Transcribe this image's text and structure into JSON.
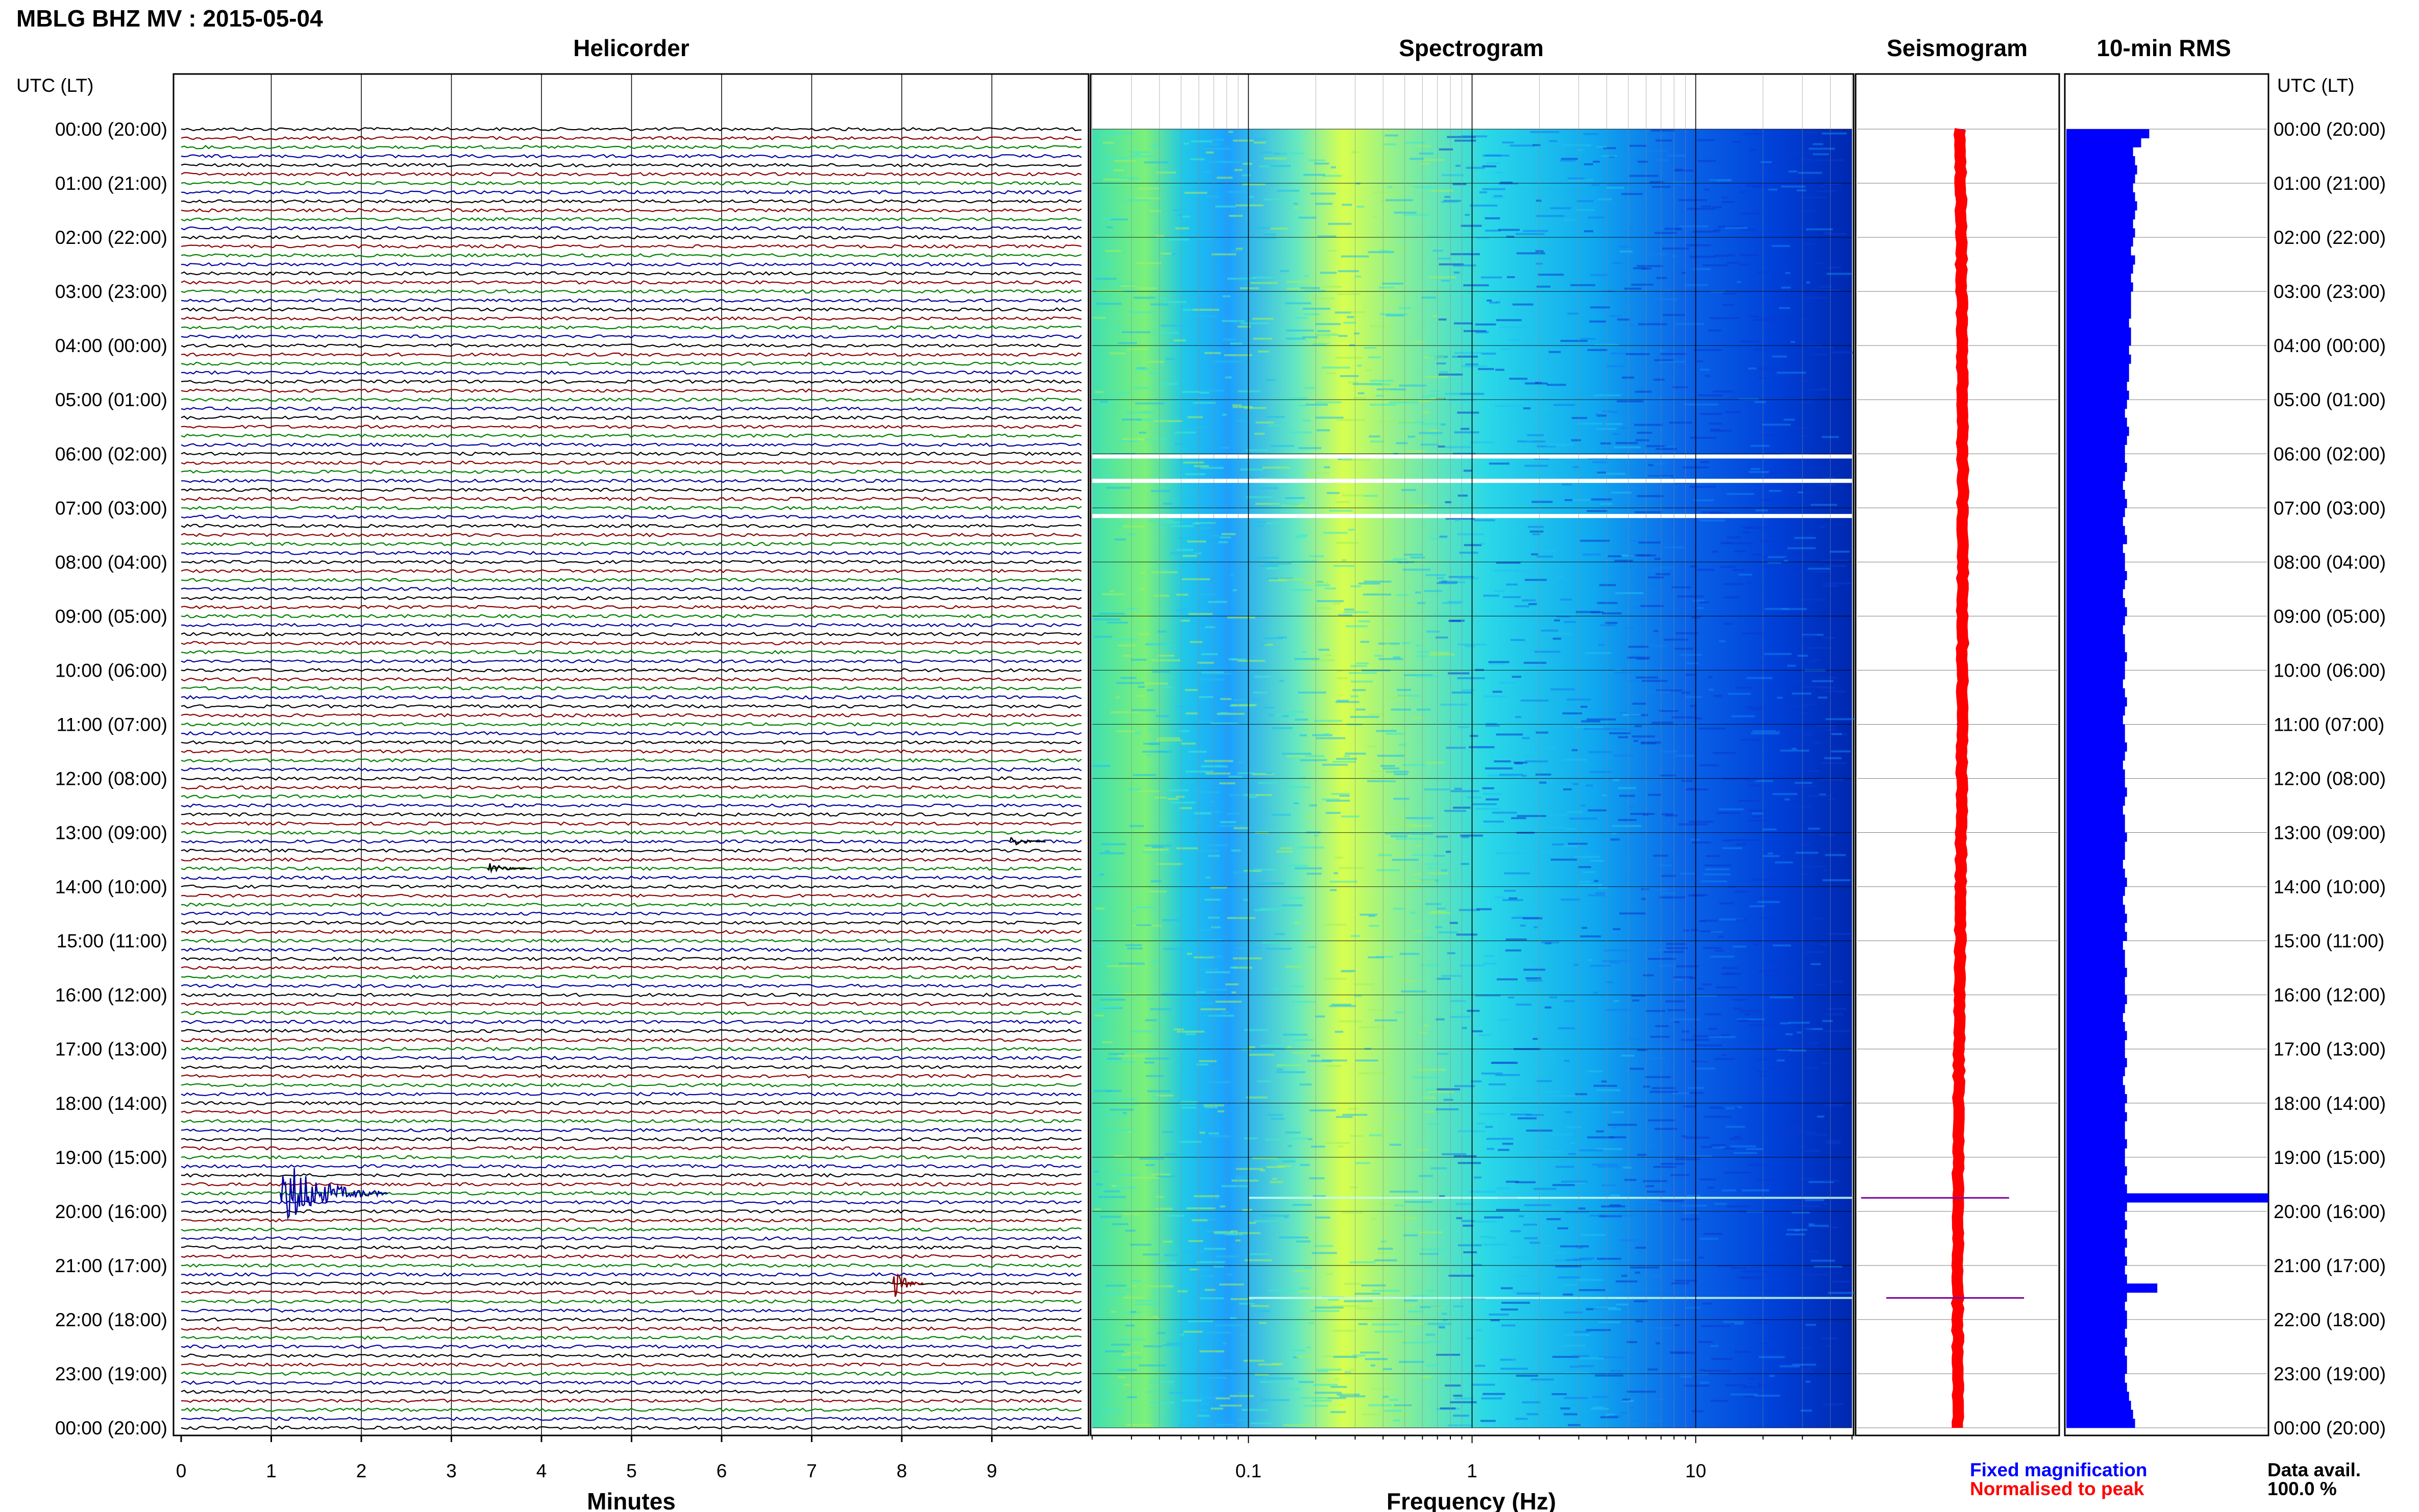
{
  "header": {
    "title": "MBLG BHZ MV : 2015-05-04",
    "utc_label": "UTC (LT)"
  },
  "panels": {
    "helicorder": "Helicorder",
    "spectrogram": "Spectrogram",
    "seismogram": "Seismogram",
    "rms": "10-min RMS"
  },
  "legend": {
    "fixed": "Fixed magnification",
    "normalised": "Normalised to peak",
    "fixed_color": "#0000ff",
    "normalised_color": "#ff0000"
  },
  "data_avail": {
    "label": "Data avail.",
    "value": "100.0 %"
  },
  "colors": {
    "trace_cycle": [
      "#000000",
      "#8b0000",
      "#008000",
      "#0000a0"
    ],
    "spectro_low": "#00008b",
    "spectro_high": "#ffff00",
    "rms_bar": "#0000ff"
  },
  "chart_data": [
    {
      "type": "line",
      "panel": "Helicorder",
      "xlabel": "Minutes",
      "xlim": [
        0,
        10
      ],
      "x_ticks": [
        "0",
        "1",
        "2",
        "3",
        "4",
        "5",
        "6",
        "7",
        "8",
        "9"
      ],
      "row_labels": [
        "00:00 (20:00)",
        "01:00 (21:00)",
        "02:00 (22:00)",
        "03:00 (23:00)",
        "04:00 (00:00)",
        "05:00 (01:00)",
        "06:00 (02:00)",
        "07:00 (03:00)",
        "08:00 (04:00)",
        "09:00 (05:00)",
        "10:00 (06:00)",
        "11:00 (07:00)",
        "12:00 (08:00)",
        "13:00 (09:00)",
        "14:00 (10:00)",
        "15:00 (11:00)",
        "16:00 (12:00)",
        "17:00 (13:00)",
        "18:00 (14:00)",
        "19:00 (15:00)",
        "20:00 (16:00)",
        "21:00 (17:00)",
        "22:00 (18:00)",
        "23:00 (19:00)",
        "00:00 (20:00)"
      ],
      "rows_per_hour": 6,
      "events": [
        {
          "row": 118,
          "minute": 1.1,
          "duration_min": 1.2,
          "amplitude": 9,
          "color": "#0000a0"
        },
        {
          "row": 128,
          "minute": 7.9,
          "duration_min": 0.35,
          "amplitude": 4,
          "color": "#8b0000"
        },
        {
          "row": 82,
          "minute": 3.4,
          "duration_min": 0.5,
          "amplitude": 1.5,
          "color": "#000000"
        },
        {
          "row": 79,
          "minute": 9.2,
          "duration_min": 0.4,
          "amplitude": 1.5,
          "color": "#000000"
        }
      ]
    },
    {
      "type": "heatmap",
      "panel": "Spectrogram",
      "xlabel": "Frequency (Hz)",
      "x_scale": "log",
      "xlim": [
        0.02,
        50
      ],
      "x_ticks": [
        "0.1",
        "1",
        "10"
      ],
      "gaps_hours": [
        6.05,
        6.5,
        7.15
      ],
      "events_hours": [
        19.75,
        21.6
      ]
    },
    {
      "type": "line",
      "panel": "Seismogram",
      "series": [
        {
          "name": "Fixed magnification",
          "color": "#0000ff"
        },
        {
          "name": "Normalised to peak",
          "color": "#ff0000"
        }
      ],
      "spikes_hours": [
        19.75,
        21.6
      ]
    },
    {
      "type": "bar",
      "panel": "10-min RMS",
      "orientation": "horizontal",
      "hours": [
        0,
        24
      ],
      "relative_values": [
        0.41,
        0.37,
        0.33,
        0.34,
        0.35,
        0.34,
        0.33,
        0.34,
        0.35,
        0.34,
        0.33,
        0.34,
        0.33,
        0.32,
        0.34,
        0.33,
        0.32,
        0.33,
        0.32,
        0.32,
        0.32,
        0.31,
        0.32,
        0.32,
        0.31,
        0.32,
        0.31,
        0.31,
        0.3,
        0.31,
        0.3,
        0.29,
        0.3,
        0.31,
        0.3,
        0.29,
        0.29,
        0.3,
        0.29,
        0.28,
        0.29,
        0.3,
        0.29,
        0.28,
        0.29,
        0.3,
        0.28,
        0.29,
        0.29,
        0.3,
        0.29,
        0.28,
        0.29,
        0.3,
        0.29,
        0.28,
        0.29,
        0.29,
        0.3,
        0.29,
        0.29,
        0.28,
        0.29,
        0.3,
        0.29,
        0.28,
        0.29,
        0.29,
        0.3,
        0.29,
        0.28,
        0.29,
        0.29,
        0.3,
        0.29,
        0.28,
        0.29,
        0.29,
        0.3,
        0.29,
        0.29,
        0.28,
        0.29,
        0.3,
        0.29,
        0.28,
        0.29,
        0.3,
        0.29,
        0.3,
        0.28,
        0.29,
        0.29,
        0.3,
        0.29,
        0.29,
        0.3,
        0.29,
        0.28,
        0.29,
        0.3,
        0.29,
        0.29,
        0.3,
        0.29,
        0.28,
        0.29,
        0.3,
        0.29,
        0.3,
        0.29,
        0.29,
        0.3,
        0.29,
        0.29,
        0.3,
        0.29,
        0.3,
        1.0,
        0.3,
        0.29,
        0.3,
        0.29,
        0.3,
        0.29,
        0.3,
        0.29,
        0.3,
        0.45,
        0.3,
        0.29,
        0.3,
        0.3,
        0.29,
        0.3,
        0.29,
        0.3,
        0.3,
        0.29,
        0.3,
        0.31,
        0.32,
        0.33,
        0.34
      ]
    }
  ]
}
